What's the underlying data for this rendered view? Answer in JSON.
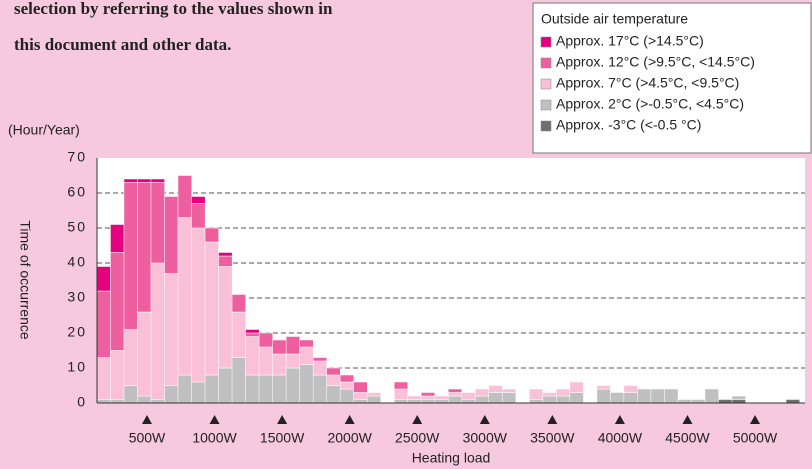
{
  "body_text": [
    "selection by referring to the values shown in",
    "this document and other data."
  ],
  "chart_data": {
    "type": "bar",
    "stacked": true,
    "y_unit_label": "(Hour/Year)",
    "ylabel": "Time of occurrence",
    "xlabel": "Heating load",
    "legend_title": "Outside air temperature",
    "legend": "upper right",
    "grid": true,
    "xlim": [
      130,
      5370
    ],
    "ylim": [
      0,
      70
    ],
    "yticks": [
      0,
      10,
      20,
      30,
      40,
      50,
      60,
      70
    ],
    "xticks": [
      {
        "value": 500,
        "label": "500W"
      },
      {
        "value": 1000,
        "label": "1000W"
      },
      {
        "value": 1500,
        "label": "1500W"
      },
      {
        "value": 2000,
        "label": "2000W"
      },
      {
        "value": 2500,
        "label": "2500W"
      },
      {
        "value": 3000,
        "label": "3000W"
      },
      {
        "value": 3500,
        "label": "3500W"
      },
      {
        "value": 4000,
        "label": "4000W"
      },
      {
        "value": 4500,
        "label": "4500W"
      },
      {
        "value": 5000,
        "label": "5000W"
      }
    ],
    "x": [
      180,
      280,
      380,
      480,
      580,
      680,
      780,
      880,
      980,
      1080,
      1180,
      1280,
      1380,
      1480,
      1580,
      1680,
      1780,
      1880,
      1980,
      2080,
      2180,
      2280,
      2380,
      2480,
      2580,
      2680,
      2780,
      2880,
      2980,
      3080,
      3180,
      3280,
      3380,
      3480,
      3580,
      3680,
      3780,
      3880,
      3980,
      4080,
      4180,
      4280,
      4380,
      4480,
      4580,
      4680,
      4780,
      4880,
      4980,
      5080,
      5180,
      5280
    ],
    "series": [
      {
        "name": "Approx. 17°C (>14.5°C)",
        "color": "#e4007f",
        "values": [
          7,
          8,
          1,
          1,
          1,
          0,
          0,
          2,
          0,
          1,
          0,
          1,
          0,
          0,
          0,
          0,
          0,
          0,
          0,
          0,
          0,
          0,
          0,
          0,
          0,
          0,
          0,
          0,
          0,
          0,
          0,
          0,
          0,
          0,
          0,
          0,
          0,
          0,
          0,
          0,
          0,
          0,
          0,
          0,
          0,
          0,
          0,
          0,
          0,
          0,
          0,
          0
        ]
      },
      {
        "name": "Approx. 12°C (>9.5°C, <14.5°C)",
        "color": "#ee5fa0",
        "values": [
          19,
          28,
          42,
          37,
          23,
          22,
          12,
          7,
          4,
          3,
          5,
          1,
          4,
          4,
          5,
          2,
          1,
          2,
          2,
          3,
          0,
          0,
          2,
          0,
          1,
          0,
          1,
          0,
          0,
          0,
          0,
          0,
          0,
          0,
          0,
          0,
          0,
          0,
          0,
          0,
          0,
          0,
          0,
          0,
          0,
          0,
          0,
          0,
          0,
          0,
          0,
          0
        ]
      },
      {
        "name": "Approx. 7°C (>4.5°C, <9.5°C)",
        "color": "#f9c0d8",
        "values": [
          12,
          14,
          16,
          24,
          39,
          32,
          45,
          44,
          38,
          29,
          13,
          11,
          8,
          6,
          4,
          5,
          4,
          3,
          2,
          2,
          1,
          0,
          3,
          1,
          1,
          1,
          1,
          2,
          2,
          2,
          1,
          0,
          3,
          1,
          2,
          3,
          0,
          1,
          0,
          2,
          0,
          0,
          0,
          0,
          0,
          0,
          0,
          0,
          0,
          0,
          0,
          0
        ]
      },
      {
        "name": "Approx. 2°C (>-0.5°C, <4.5°C)",
        "color": "#c0c0c0",
        "values": [
          1,
          1,
          5,
          2,
          1,
          5,
          8,
          6,
          8,
          10,
          13,
          8,
          8,
          8,
          10,
          11,
          8,
          5,
          4,
          1,
          2,
          0,
          1,
          1,
          1,
          1,
          2,
          1,
          2,
          3,
          3,
          0,
          1,
          2,
          2,
          3,
          0,
          4,
          3,
          3,
          4,
          4,
          4,
          1,
          1,
          4,
          0,
          1,
          0,
          0,
          0,
          0
        ]
      },
      {
        "name": "Approx. -3°C (<-0.5 °C)",
        "color": "#6e6e6e",
        "values": [
          0,
          0,
          0,
          0,
          0,
          0,
          0,
          0,
          0,
          0,
          0,
          0,
          0,
          0,
          0,
          0,
          0,
          0,
          0,
          0,
          0,
          0,
          0,
          0,
          0,
          0,
          0,
          0,
          0,
          0,
          0,
          0,
          0,
          0,
          0,
          0,
          0,
          0,
          0,
          0,
          0,
          0,
          0,
          0,
          0,
          0,
          1,
          1,
          0,
          0,
          0,
          1
        ]
      }
    ]
  }
}
